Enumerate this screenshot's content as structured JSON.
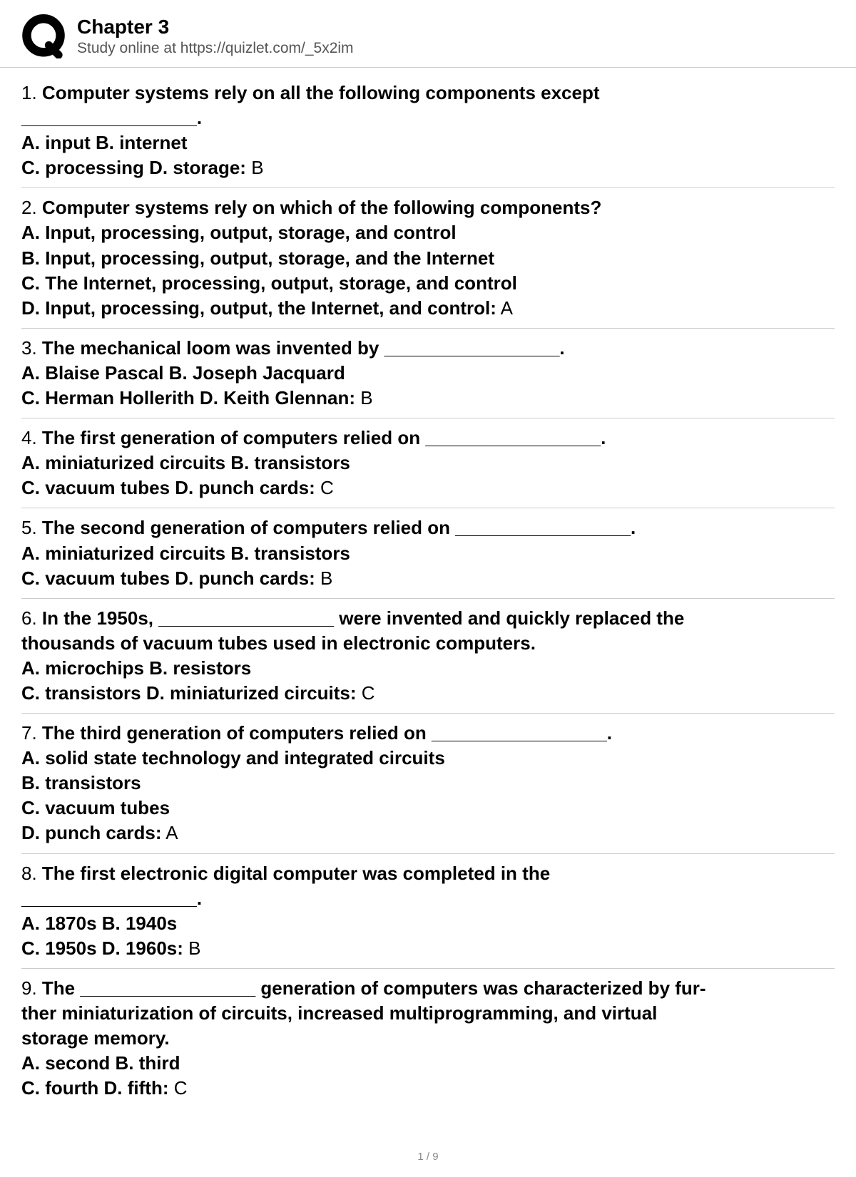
{
  "header": {
    "title": "Chapter 3",
    "subtitle": "Study online at https://quizlet.com/_5x2im"
  },
  "logo": {
    "stroke_color": "#000000",
    "fill_color": "#000000"
  },
  "questions": [
    {
      "num": "1.",
      "prompt_lines": [
        "Computer systems rely on all the following components except",
        "_________________."
      ],
      "option_lines": [
        "A. input B. internet",
        "C. processing D. storage:"
      ],
      "answer": " B"
    },
    {
      "num": "2.",
      "prompt_lines": [
        "Computer systems rely on which of the following components?"
      ],
      "option_lines": [
        "A. Input, processing, output, storage, and control",
        "B. Input, processing, output, storage, and the Internet",
        "C. The Internet, processing, output, storage, and control",
        "D. Input, processing, output, the Internet, and control:"
      ],
      "answer": " A"
    },
    {
      "num": "3.",
      "prompt_lines": [
        "The mechanical loom was invented by _________________."
      ],
      "option_lines": [
        "A. Blaise Pascal B. Joseph Jacquard",
        "C. Herman Hollerith D. Keith Glennan:"
      ],
      "answer": " B"
    },
    {
      "num": "4.",
      "prompt_lines": [
        "The first generation of computers relied on _________________."
      ],
      "option_lines": [
        "A. miniaturized circuits B. transistors",
        "C. vacuum tubes D. punch cards:"
      ],
      "answer": " C"
    },
    {
      "num": "5.",
      "prompt_lines": [
        "The second generation of computers relied on _________________."
      ],
      "option_lines": [
        "A. miniaturized circuits B. transistors",
        "C. vacuum tubes D. punch cards:"
      ],
      "answer": " B"
    },
    {
      "num": "6.",
      "prompt_lines": [
        "In the 1950s, _________________ were invented and quickly replaced the",
        "thousands of vacuum tubes used in electronic computers."
      ],
      "option_lines": [
        "A. microchips B. resistors",
        "C. transistors D. miniaturized circuits:"
      ],
      "answer": " C"
    },
    {
      "num": "7.",
      "prompt_lines": [
        "The third generation of computers relied on _________________."
      ],
      "option_lines": [
        "A. solid state technology and integrated circuits",
        "B. transistors",
        "C. vacuum tubes",
        "D. punch cards:"
      ],
      "answer": " A"
    },
    {
      "num": "8.",
      "prompt_lines": [
        "The first electronic digital computer was completed in the",
        "_________________."
      ],
      "option_lines": [
        "A. 1870s B. 1940s",
        "C. 1950s D. 1960s:"
      ],
      "answer": " B"
    },
    {
      "num": "9.",
      "prompt_lines": [
        "The _________________ generation of computers was characterized by fur-",
        "ther miniaturization of circuits, increased multiprogramming, and virtual",
        "storage memory."
      ],
      "option_lines": [
        "A. second B. third",
        "C. fourth D. fifth:"
      ],
      "answer": " C"
    }
  ],
  "footer": {
    "page": "1 / 9"
  },
  "styles": {
    "background_color": "#ffffff",
    "text_color": "#000000",
    "divider_color": "#cccccc",
    "body_fontsize": 26,
    "title_fontsize": 28,
    "subtitle_fontsize": 21,
    "footer_color": "#888888"
  }
}
